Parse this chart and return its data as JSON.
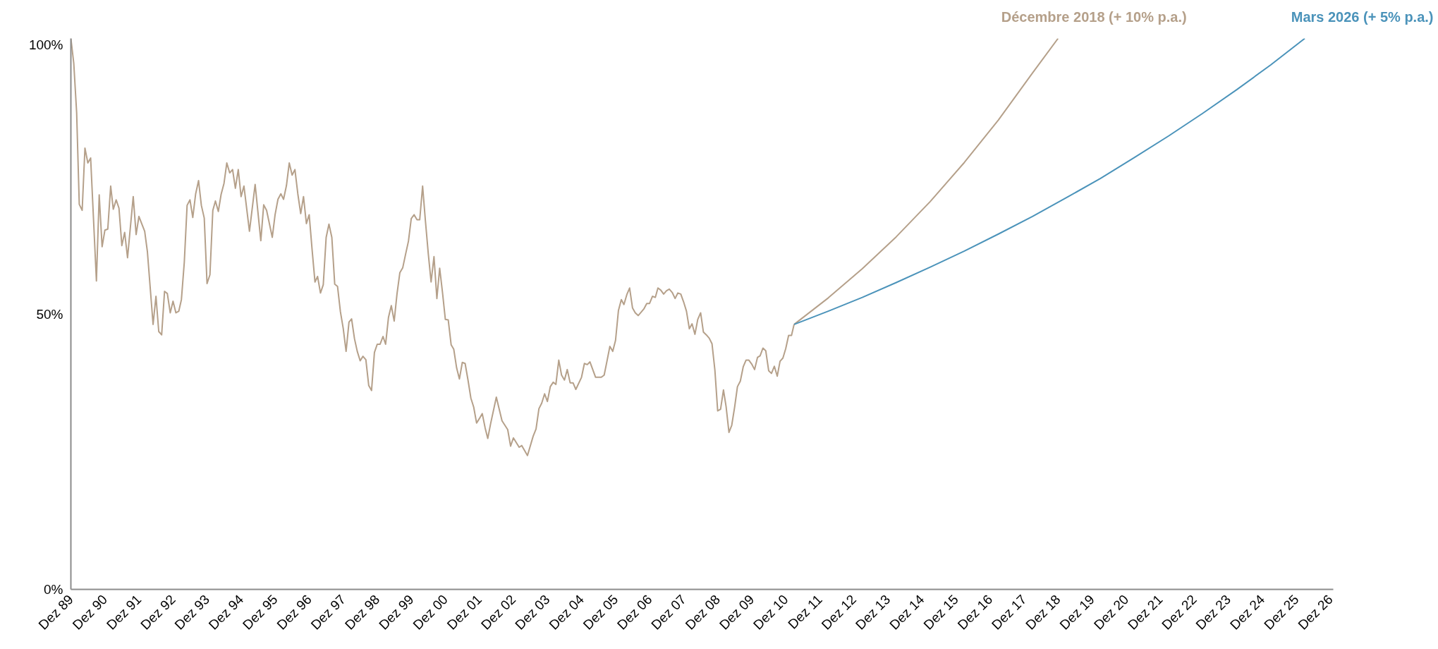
{
  "chart_data": {
    "type": "line",
    "xlim": [
      "1989-12",
      "2027-01"
    ],
    "ylim": [
      0,
      100
    ],
    "yticks": [
      {
        "value": 0,
        "label": "0%"
      },
      {
        "value": 50,
        "label": "50%"
      },
      {
        "value": 100,
        "label": "100%"
      }
    ],
    "xticks": [
      {
        "value": "1989-12",
        "label": "Dez 89"
      },
      {
        "value": "1990-12",
        "label": "Dez 90"
      },
      {
        "value": "1991-12",
        "label": "Dez 91"
      },
      {
        "value": "1992-12",
        "label": "Dez 92"
      },
      {
        "value": "1993-12",
        "label": "Dez 93"
      },
      {
        "value": "1994-12",
        "label": "Dez 94"
      },
      {
        "value": "1995-12",
        "label": "Dez 95"
      },
      {
        "value": "1996-12",
        "label": "Dez 96"
      },
      {
        "value": "1997-12",
        "label": "Dez 97"
      },
      {
        "value": "1998-12",
        "label": "Dez 98"
      },
      {
        "value": "1999-12",
        "label": "Dez 99"
      },
      {
        "value": "2000-12",
        "label": "Dez 00"
      },
      {
        "value": "2001-12",
        "label": "Dez 01"
      },
      {
        "value": "2002-12",
        "label": "Dez 02"
      },
      {
        "value": "2003-12",
        "label": "Dez 03"
      },
      {
        "value": "2004-12",
        "label": "Dez 04"
      },
      {
        "value": "2005-12",
        "label": "Dez 05"
      },
      {
        "value": "2006-12",
        "label": "Dez 06"
      },
      {
        "value": "2007-12",
        "label": "Dez 07"
      },
      {
        "value": "2008-12",
        "label": "Dez 08"
      },
      {
        "value": "2009-12",
        "label": "Dez 09"
      },
      {
        "value": "2010-12",
        "label": "Dez 10"
      },
      {
        "value": "2011-12",
        "label": "Dez 11"
      },
      {
        "value": "2012-12",
        "label": "Dez 12"
      },
      {
        "value": "2013-12",
        "label": "Dez 13"
      },
      {
        "value": "2014-12",
        "label": "Dez 14"
      },
      {
        "value": "2015-12",
        "label": "Dez 15"
      },
      {
        "value": "2016-12",
        "label": "Dez 16"
      },
      {
        "value": "2017-12",
        "label": "Dez 17"
      },
      {
        "value": "2018-12",
        "label": "Dez 18"
      },
      {
        "value": "2019-12",
        "label": "Dez 19"
      },
      {
        "value": "2020-12",
        "label": "Dez 20"
      },
      {
        "value": "2021-12",
        "label": "Dez 21"
      },
      {
        "value": "2022-12",
        "label": "Dez 22"
      },
      {
        "value": "2023-12",
        "label": "Dez 23"
      },
      {
        "value": "2024-12",
        "label": "Dez 24"
      },
      {
        "value": "2025-12",
        "label": "Dez 25"
      },
      {
        "value": "2026-12",
        "label": "Dez 26"
      }
    ],
    "line_style": "solid",
    "series": [
      {
        "color": "#b5a08a",
        "x": [
          "1989-12",
          "1990-01",
          "1990-02",
          "1990-03",
          "1990-04",
          "1990-05",
          "1990-06",
          "1990-07",
          "1990-09",
          "1990-10",
          "1990-11",
          "1990-12",
          "1991-01",
          "1991-02",
          "1991-03",
          "1991-04",
          "1991-05",
          "1991-06",
          "1991-07",
          "1991-08",
          "1991-10",
          "1991-11",
          "1991-12",
          "1992-02",
          "1992-03",
          "1992-05",
          "1992-06",
          "1992-07",
          "1992-08",
          "1992-09",
          "1992-10",
          "1992-11",
          "1992-12",
          "1993-01",
          "1993-02",
          "1993-03",
          "1993-04",
          "1993-05",
          "1993-06",
          "1993-07",
          "1993-08",
          "1993-09",
          "1993-10",
          "1993-11",
          "1993-12",
          "1994-01",
          "1994-02",
          "1994-03",
          "1994-04",
          "1994-05",
          "1994-06",
          "1994-07",
          "1994-08",
          "1994-09",
          "1994-10",
          "1994-11",
          "1994-12",
          "1995-01",
          "1995-03",
          "1995-05",
          "1995-07",
          "1995-08",
          "1995-09",
          "1995-11",
          "1995-12",
          "1996-01",
          "1996-02",
          "1996-03",
          "1996-04",
          "1996-05",
          "1996-06",
          "1996-07",
          "1996-08",
          "1996-09",
          "1996-10",
          "1996-11",
          "1996-12",
          "1997-01",
          "1997-02",
          "1997-03",
          "1997-04",
          "1997-05",
          "1997-06",
          "1997-07",
          "1997-08",
          "1997-09",
          "1997-10",
          "1997-11",
          "1997-12",
          "1998-01",
          "1998-02",
          "1998-03",
          "1998-04",
          "1998-05",
          "1998-06",
          "1998-07",
          "1998-08",
          "1998-09",
          "1998-10",
          "1998-11",
          "1998-12",
          "1999-01",
          "1999-02",
          "1999-03",
          "1999-04",
          "1999-05",
          "1999-06",
          "1999-07",
          "1999-08",
          "1999-09",
          "1999-10",
          "1999-11",
          "1999-12",
          "2000-01",
          "2000-02",
          "2000-03",
          "2000-04",
          "2000-05",
          "2000-06",
          "2000-07",
          "2000-08",
          "2000-09",
          "2000-10",
          "2000-11",
          "2000-12",
          "2001-01",
          "2001-02",
          "2001-03",
          "2001-04",
          "2001-05",
          "2001-06",
          "2001-07",
          "2001-08",
          "2001-09",
          "2001-10",
          "2001-11",
          "2001-12",
          "2002-01",
          "2002-02",
          "2002-03",
          "2002-04",
          "2002-06",
          "2002-08",
          "2002-10",
          "2002-11",
          "2002-12",
          "2003-02",
          "2003-03",
          "2003-05",
          "2003-07",
          "2003-08",
          "2003-09",
          "2003-10",
          "2003-11",
          "2003-12",
          "2004-01",
          "2004-02",
          "2004-03",
          "2004-04",
          "2004-05",
          "2004-06",
          "2004-07",
          "2004-08",
          "2004-09",
          "2004-10",
          "2004-12",
          "2005-01",
          "2005-02",
          "2005-03",
          "2005-05",
          "2005-07",
          "2005-08",
          "2005-09",
          "2005-10",
          "2005-11",
          "2005-12",
          "2006-01",
          "2006-02",
          "2006-03",
          "2006-04",
          "2006-05",
          "2006-06",
          "2006-07",
          "2006-08",
          "2006-09",
          "2006-10",
          "2006-11",
          "2006-12",
          "2007-01",
          "2007-02",
          "2007-03",
          "2007-04",
          "2007-05",
          "2007-06",
          "2007-07",
          "2007-08",
          "2007-09",
          "2007-10",
          "2007-11",
          "2007-12",
          "2008-01",
          "2008-02",
          "2008-03",
          "2008-04",
          "2008-05",
          "2008-06",
          "2008-07",
          "2008-08",
          "2008-09",
          "2008-10",
          "2008-11",
          "2008-12",
          "2009-01",
          "2009-02",
          "2009-03",
          "2009-04",
          "2009-05",
          "2009-06",
          "2009-07",
          "2009-08",
          "2009-09",
          "2009-10",
          "2009-11",
          "2009-12",
          "2010-01",
          "2010-02",
          "2010-03",
          "2010-04",
          "2010-05",
          "2010-06",
          "2010-07",
          "2010-08",
          "2010-09",
          "2010-10",
          "2010-11",
          "2010-12",
          "2011-01",
          "2011-02",
          "2011-03"
        ],
        "values": [
          100,
          95.5,
          86.5,
          69.9,
          68.8,
          80.1,
          77.4,
          78.3,
          56.0,
          71.6,
          62.2,
          65.2,
          65.4,
          73.2,
          69.0,
          70.7,
          69.2,
          62.4,
          64.8,
          60.2,
          71.3,
          64.4,
          67.7,
          65.0,
          61.3,
          48.1,
          53.2,
          46.8,
          46.2,
          54.1,
          53.7,
          50.2,
          52.3,
          50.2,
          50.5,
          52.6,
          59.4,
          69.7,
          70.7,
          67.5,
          71.8,
          74.2,
          69.7,
          67.4,
          55.5,
          57.1,
          68.8,
          70.5,
          68.6,
          71.7,
          73.7,
          77.4,
          75.6,
          76.2,
          72.8,
          76.2,
          71.3,
          73.2,
          65.0,
          73.5,
          63.3,
          69.8,
          68.8,
          63.9,
          68.0,
          70.8,
          71.8,
          70.8,
          73.3,
          77.4,
          75.2,
          76.2,
          71.8,
          68.2,
          71.3,
          66.4,
          68.0,
          61.7,
          55.8,
          56.8,
          53.8,
          55.3,
          63.9,
          66.3,
          63.9,
          55.4,
          55.0,
          50.4,
          47.4,
          43.2,
          48.5,
          49.1,
          45.5,
          43.2,
          41.5,
          42.3,
          41.7,
          37.0,
          36.1,
          43.0,
          44.5,
          44.5,
          45.9,
          44.5,
          49.4,
          51.5,
          48.7,
          53.6,
          57.5,
          58.4,
          60.8,
          63.2,
          67.3,
          68.0,
          67.1,
          67.1,
          73.2,
          66.9,
          60.9,
          55.8,
          60.4,
          52.8,
          58.3,
          53.8,
          49.0,
          48.9,
          44.4,
          43.6,
          40.2,
          38.2,
          41.2,
          41.0,
          38.0,
          34.7,
          33.1,
          30.2,
          31.0,
          31.9,
          29.3,
          27.4,
          30.1,
          34.9,
          30.6,
          29.0,
          26.0,
          27.5,
          25.8,
          26.1,
          24.3,
          27.8,
          29.1,
          32.8,
          33.8,
          35.5,
          34.1,
          36.8,
          37.6,
          37.2,
          41.6,
          38.9,
          38.0,
          39.9,
          37.5,
          37.5,
          36.3,
          38.5,
          41.0,
          40.8,
          41.3,
          38.5,
          38.5,
          38.9,
          41.5,
          44.1,
          43.2,
          45.2,
          50.6,
          52.6,
          51.7,
          53.5,
          54.7,
          51.1,
          50.2,
          49.7,
          50.3,
          50.9,
          51.9,
          51.9,
          53.2,
          53.0,
          54.7,
          54.3,
          53.6,
          54.2,
          54.5,
          53.9,
          52.8,
          53.8,
          53.6,
          52.2,
          50.5,
          47.3,
          48.2,
          46.3,
          49.0,
          50.2,
          46.7,
          46.2,
          45.6,
          44.6,
          39.8,
          32.4,
          32.7,
          36.2,
          33.2,
          28.5,
          29.8,
          33.1,
          36.8,
          37.8,
          40.4,
          41.6,
          41.6,
          40.9,
          39.9,
          42.1,
          42.4,
          43.8,
          43.3,
          39.7,
          39.2,
          40.5,
          38.7,
          41.4,
          42.0,
          43.7,
          46.1,
          46.1,
          48.1
        ]
      },
      {
        "name": "Décembre 2018 (+ 10%  p.a.)",
        "color": "#b5a08a",
        "x": [
          "2011-03",
          "2012-03",
          "2013-03",
          "2014-03",
          "2015-03",
          "2016-03",
          "2017-03",
          "2018-03",
          "2018-12"
        ],
        "values": [
          48.1,
          52.9,
          58.2,
          64.0,
          70.4,
          77.5,
          85.2,
          93.7,
          100
        ]
      },
      {
        "name": "Mars 2026  (+ 5% p.a.)",
        "color": "#4b93ba",
        "x": [
          "2011-03",
          "2012-03",
          "2013-03",
          "2014-03",
          "2015-03",
          "2016-03",
          "2017-03",
          "2018-03",
          "2019-03",
          "2020-03",
          "2021-03",
          "2022-03",
          "2023-03",
          "2024-03",
          "2025-03",
          "2026-03"
        ],
        "values": [
          48.1,
          50.5,
          53.0,
          55.7,
          58.5,
          61.4,
          64.5,
          67.7,
          71.1,
          74.6,
          78.4,
          82.3,
          86.4,
          90.7,
          95.2,
          100
        ]
      }
    ]
  }
}
